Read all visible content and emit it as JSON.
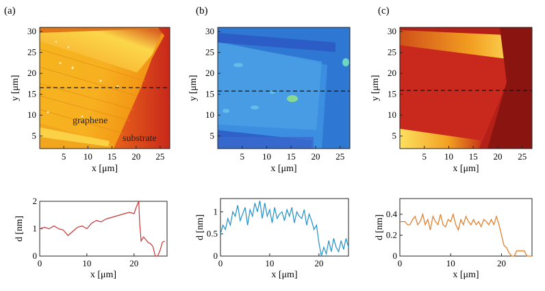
{
  "panels": [
    {
      "label": "(a)",
      "color": "#c83232"
    },
    {
      "label": "(b)",
      "color": "#1f8fc8"
    },
    {
      "label": "(c)",
      "color": "#e07820"
    }
  ],
  "maps": {
    "xlabel": "x [μm]",
    "ylabel": "y [μm]",
    "xticks": [
      "5",
      "10",
      "15",
      "20",
      "25"
    ],
    "yticks": [
      "5",
      "10",
      "15",
      "20",
      "25",
      "30"
    ],
    "xlim": [
      0,
      27
    ],
    "ylim": [
      2,
      31
    ],
    "dashed_line_y": 15.3,
    "annotations": [
      "graphene",
      "substrate"
    ]
  },
  "chart_data": [
    {
      "type": "line",
      "panel": "(a)",
      "xlabel": "x [μm]",
      "ylabel": "d [nm]",
      "xlim": [
        0,
        27
      ],
      "ylim": [
        0,
        2
      ],
      "xticks": [
        "0",
        "10",
        "20"
      ],
      "yticks": [
        "0",
        "1",
        "2"
      ],
      "x": [
        0,
        1,
        2,
        3,
        4,
        5,
        6,
        7,
        8,
        9,
        10,
        11,
        12,
        13,
        14,
        15,
        16,
        17,
        18,
        19,
        20,
        20.5,
        21,
        21.2,
        21.5,
        22,
        22.5,
        23,
        23.5,
        24,
        24.5,
        25,
        25.5,
        26,
        26.5
      ],
      "y": [
        1.0,
        1.05,
        1.0,
        1.1,
        1.0,
        0.95,
        0.75,
        0.9,
        1.05,
        1.1,
        1.0,
        1.2,
        1.3,
        1.25,
        1.35,
        1.4,
        1.45,
        1.5,
        1.55,
        1.6,
        1.55,
        1.8,
        2.0,
        1.2,
        0.55,
        0.7,
        0.6,
        0.5,
        0.45,
        0.35,
        0.0,
        0.0,
        0.2,
        0.5,
        0.55
      ]
    },
    {
      "type": "line",
      "panel": "(b)",
      "xlabel": "x [μm]",
      "ylabel": "d [nm]",
      "xlim": [
        0,
        26
      ],
      "ylim": [
        0,
        1.3
      ],
      "xticks": [
        "0",
        "10",
        "20"
      ],
      "yticks": [
        "0",
        "0.5",
        "1"
      ],
      "x": [
        0,
        0.5,
        1,
        1.5,
        2,
        2.5,
        3,
        3.5,
        4,
        4.5,
        5,
        5.5,
        6,
        6.5,
        7,
        7.5,
        8,
        8.5,
        9,
        9.5,
        10,
        10.5,
        11,
        11.5,
        12,
        12.5,
        13,
        13.5,
        14,
        14.5,
        15,
        15.5,
        16,
        16.5,
        17,
        17.5,
        18,
        18.5,
        19,
        19.5,
        20,
        20.5,
        21,
        21.5,
        22,
        22.5,
        23,
        23.5,
        24,
        24.5,
        25,
        25.5,
        26
      ],
      "y": [
        0.5,
        0.7,
        0.6,
        0.85,
        0.7,
        1.0,
        0.9,
        1.15,
        0.8,
        0.95,
        1.1,
        0.7,
        1.05,
        0.9,
        1.2,
        1.0,
        1.25,
        0.85,
        1.2,
        0.9,
        1.05,
        0.75,
        1.1,
        0.85,
        0.95,
        1.0,
        0.8,
        1.05,
        0.9,
        1.1,
        0.75,
        1.0,
        0.9,
        0.85,
        1.05,
        0.7,
        0.95,
        0.8,
        0.6,
        0.7,
        0.3,
        0.0,
        0.2,
        0.05,
        0.35,
        0.1,
        0.4,
        0.2,
        0.1,
        0.35,
        0.15,
        0.4,
        0.2
      ]
    },
    {
      "type": "line",
      "panel": "(c)",
      "xlabel": "x [μm]",
      "ylabel": "d [nm]",
      "xlim": [
        0,
        26
      ],
      "ylim": [
        0,
        0.55
      ],
      "xticks": [
        "0",
        "10",
        "20"
      ],
      "yticks": [
        "0",
        "0.2",
        "0.4"
      ],
      "x": [
        0,
        0.5,
        1,
        1.5,
        2,
        2.5,
        3,
        3.5,
        4,
        4.5,
        5,
        5.5,
        6,
        6.5,
        7,
        7.5,
        8,
        8.5,
        9,
        9.5,
        10,
        10.5,
        11,
        11.5,
        12,
        12.5,
        13,
        13.5,
        14,
        14.5,
        15,
        15.5,
        16,
        16.5,
        17,
        17.5,
        18,
        18.5,
        19,
        19.5,
        20,
        20.5,
        21,
        21.5,
        22,
        22.5,
        23,
        23.5,
        24,
        24.5,
        25,
        25.5,
        26
      ],
      "y": [
        0.33,
        0.33,
        0.33,
        0.3,
        0.3,
        0.35,
        0.38,
        0.3,
        0.33,
        0.4,
        0.3,
        0.35,
        0.25,
        0.38,
        0.33,
        0.3,
        0.4,
        0.3,
        0.28,
        0.35,
        0.33,
        0.4,
        0.3,
        0.25,
        0.35,
        0.3,
        0.38,
        0.33,
        0.3,
        0.35,
        0.3,
        0.33,
        0.28,
        0.35,
        0.33,
        0.3,
        0.35,
        0.3,
        0.38,
        0.3,
        0.2,
        0.1,
        0.08,
        0.03,
        0.0,
        0.0,
        0.05,
        0.05,
        0.05,
        0.05,
        0.0,
        0.0,
        0.0
      ]
    }
  ]
}
